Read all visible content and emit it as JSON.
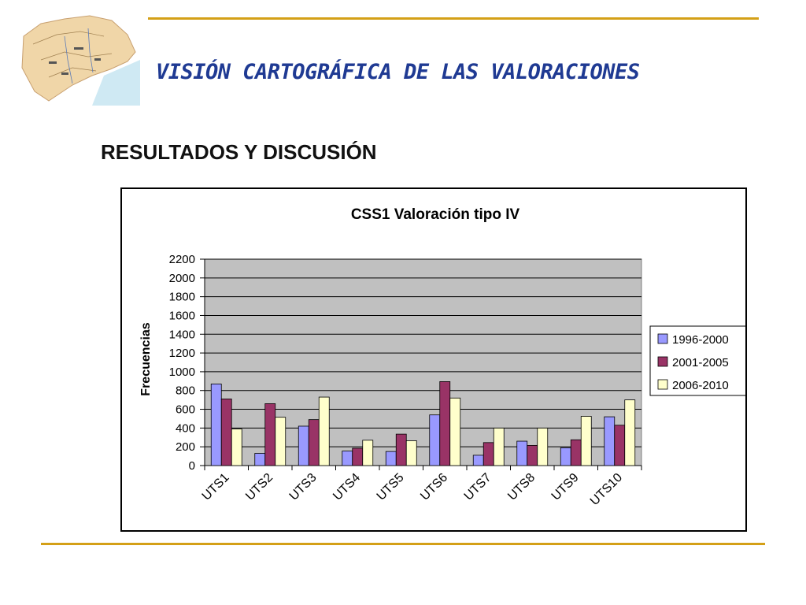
{
  "slide": {
    "title": "VISIÓN CARTOGRÁFICA DE LAS VALORACIONES",
    "section": "RESULTADOS Y DISCUSIÓN"
  },
  "colors": {
    "rule": "#d4a017",
    "title": "#1f3a93",
    "plot_bg": "#c0c0c0",
    "series": [
      "#9999ff",
      "#993366",
      "#ffffcc"
    ]
  },
  "chart_data": {
    "type": "bar",
    "title": "CSS1 Valoración tipo IV",
    "xlabel": "",
    "ylabel": "Frecuencias",
    "ylim": [
      0,
      2200
    ],
    "yticks": [
      0,
      200,
      400,
      600,
      800,
      1000,
      1200,
      1400,
      1600,
      1800,
      2000,
      2200
    ],
    "grid": true,
    "legend_position": "right",
    "categories": [
      "UTS1",
      "UTS2",
      "UTS3",
      "UTS4",
      "UTS5",
      "UTS6",
      "UTS7",
      "UTS8",
      "UTS9",
      "UTS10"
    ],
    "series": [
      {
        "name": "1996-2000",
        "values": [
          870,
          130,
          420,
          155,
          150,
          540,
          110,
          260,
          190,
          520
        ]
      },
      {
        "name": "2001-2005",
        "values": [
          710,
          660,
          490,
          185,
          335,
          895,
          245,
          215,
          275,
          430
        ]
      },
      {
        "name": "2006-2010",
        "values": [
          390,
          515,
          730,
          270,
          265,
          720,
          400,
          400,
          525,
          700
        ]
      }
    ]
  }
}
